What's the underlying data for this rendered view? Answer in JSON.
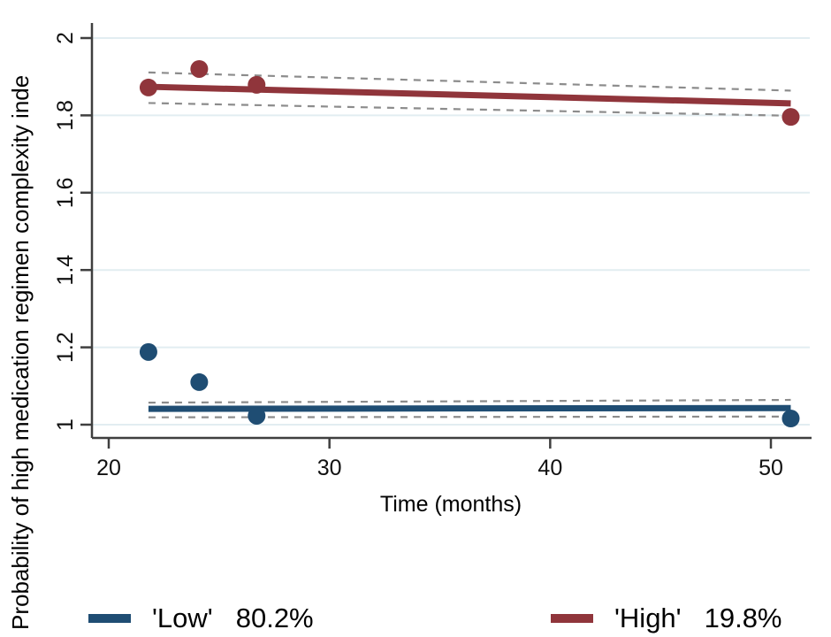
{
  "chart_data": {
    "type": "scatter",
    "title": "",
    "xlabel": "Time (months)",
    "ylabel": "Probability of high medication regimen complexity inde",
    "x_ticks": [
      20,
      30,
      40,
      50
    ],
    "y_ticks": [
      1,
      1.2,
      1.4,
      1.6,
      1.8,
      2
    ],
    "xlim": [
      19.2,
      51.8
    ],
    "ylim": [
      0.966,
      2.039
    ],
    "grid": true,
    "grid_axis": "horizontal",
    "legend_position": "bottom",
    "axis_color": "#3f3f3f",
    "grid_color": "#e2edf1",
    "ci_color": "#8c8c8c",
    "series": [
      {
        "name": "Low",
        "legend_label": "'Low'",
        "legend_value": "80.2%",
        "color": "#1f4d73",
        "scatter_x": [
          21.8,
          24.1,
          26.7,
          50.9
        ],
        "scatter_y": [
          1.188,
          1.11,
          1.023,
          1.016
        ],
        "fit_x": [
          21.8,
          50.9
        ],
        "fit_y": [
          1.041,
          1.043
        ],
        "ci_upper_y": [
          1.057,
          1.064
        ],
        "ci_lower_y": [
          1.019,
          1.021
        ]
      },
      {
        "name": "High",
        "legend_label": "'High'",
        "legend_value": "19.8%",
        "color": "#90353b",
        "scatter_x": [
          21.8,
          24.1,
          26.7,
          50.9
        ],
        "scatter_y": [
          1.872,
          1.92,
          1.879,
          1.796
        ],
        "fit_x": [
          21.8,
          50.9
        ],
        "fit_y": [
          1.874,
          1.831
        ],
        "ci_upper_y": [
          1.911,
          1.864
        ],
        "ci_lower_y": [
          1.832,
          1.799
        ]
      }
    ]
  }
}
